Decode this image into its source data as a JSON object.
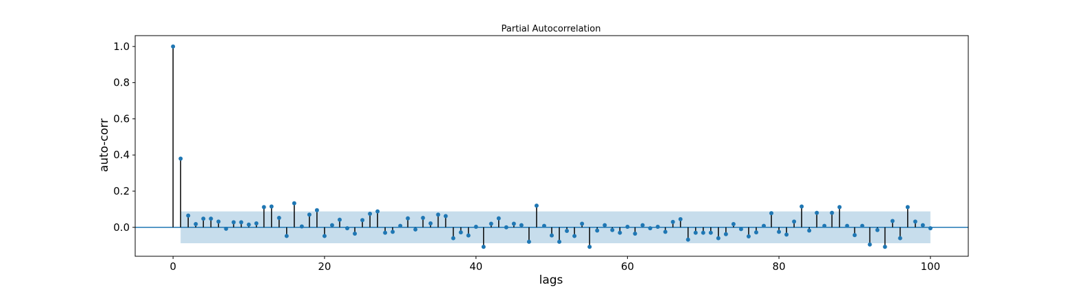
{
  "chart_data": {
    "type": "stem",
    "title": "Partial Autocorrelation",
    "xlabel": "lags",
    "ylabel": "auto-corr",
    "xlim": [
      -5,
      105
    ],
    "ylim": [
      -0.16,
      1.06
    ],
    "xticks": [
      0,
      20,
      40,
      60,
      80,
      100
    ],
    "yticks": [
      0.0,
      0.2,
      0.4,
      0.6,
      0.8,
      1.0
    ],
    "xtick_labels": [
      "0",
      "20",
      "40",
      "60",
      "80",
      "100"
    ],
    "ytick_labels": [
      "0.0",
      "0.2",
      "0.4",
      "0.6",
      "0.8",
      "1.0"
    ],
    "grid": false,
    "confidence_band": {
      "x_start": 1,
      "x_end": 100,
      "lower": -0.088,
      "upper": 0.088
    },
    "colors": {
      "marker": "#1f77b4",
      "stem": "#000000",
      "baseline": "#1f77b4",
      "band": "#1f77b4"
    },
    "x": [
      0,
      1,
      2,
      3,
      4,
      5,
      6,
      7,
      8,
      9,
      10,
      11,
      12,
      13,
      14,
      15,
      16,
      17,
      18,
      19,
      20,
      21,
      22,
      23,
      24,
      25,
      26,
      27,
      28,
      29,
      30,
      31,
      32,
      33,
      34,
      35,
      36,
      37,
      38,
      39,
      40,
      41,
      42,
      43,
      44,
      45,
      46,
      47,
      48,
      49,
      50,
      51,
      52,
      53,
      54,
      55,
      56,
      57,
      58,
      59,
      60,
      61,
      62,
      63,
      64,
      65,
      66,
      67,
      68,
      69,
      70,
      71,
      72,
      73,
      74,
      75,
      76,
      77,
      78,
      79,
      80,
      81,
      82,
      83,
      84,
      85,
      86,
      87,
      88,
      89,
      90,
      91,
      92,
      93,
      94,
      95,
      96,
      97,
      98,
      99,
      100
    ],
    "values": [
      1.0,
      0.38,
      0.065,
      0.018,
      0.048,
      0.048,
      0.032,
      -0.008,
      0.028,
      0.028,
      0.015,
      0.022,
      0.112,
      0.115,
      0.052,
      -0.048,
      0.133,
      0.005,
      0.07,
      0.095,
      -0.048,
      0.012,
      0.042,
      -0.005,
      -0.035,
      0.04,
      0.075,
      0.088,
      -0.03,
      -0.025,
      0.008,
      0.05,
      -0.012,
      0.052,
      0.022,
      0.07,
      0.062,
      -0.06,
      -0.028,
      -0.045,
      0.003,
      -0.108,
      0.02,
      0.05,
      0.0,
      0.02,
      0.012,
      -0.08,
      0.12,
      0.008,
      -0.045,
      -0.08,
      -0.02,
      -0.048,
      0.02,
      -0.108,
      -0.018,
      0.012,
      -0.015,
      -0.03,
      0.003,
      -0.035,
      0.012,
      -0.005,
      0.003,
      -0.025,
      0.03,
      0.045,
      -0.068,
      -0.03,
      -0.03,
      -0.03,
      -0.06,
      -0.038,
      0.018,
      -0.01,
      -0.05,
      -0.028,
      0.008,
      0.078,
      -0.025,
      -0.04,
      0.032,
      0.115,
      -0.018,
      0.08,
      0.008,
      0.08,
      0.112,
      0.008,
      -0.043,
      0.008,
      -0.095,
      -0.015,
      -0.108,
      0.035,
      -0.06,
      0.112,
      0.032,
      0.012,
      -0.005
    ]
  }
}
